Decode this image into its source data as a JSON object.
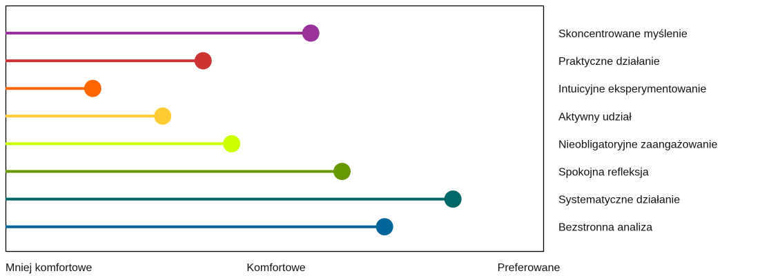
{
  "chart_data": {
    "type": "lollipop",
    "orientation": "horizontal",
    "title": "",
    "xlabel": "",
    "ylabel": "",
    "x_ticks": [
      "Mniej komfortowe",
      "Komfortowe",
      "Preferowane"
    ],
    "xlim": [
      0,
      100
    ],
    "grid": false,
    "items": [
      {
        "label": "Skoncentrowane myślenie",
        "value": 56.7,
        "color": "#993399"
      },
      {
        "label": "Praktyczne działanie",
        "value": 36.7,
        "color": "#cc3333"
      },
      {
        "label": "Intuicyjne eksperymentowanie",
        "value": 16.2,
        "color": "#ff6600"
      },
      {
        "label": "Aktywny udział",
        "value": 29.2,
        "color": "#ffcc33"
      },
      {
        "label": "Nieobligatoryjne zaangażowanie",
        "value": 42.0,
        "color": "#ccff00"
      },
      {
        "label": "Spokojna refleksja",
        "value": 62.5,
        "color": "#669900"
      },
      {
        "label": "Systematyczne działanie",
        "value": 83.1,
        "color": "#006666"
      },
      {
        "label": "Bezstronna analiza",
        "value": 70.4,
        "color": "#006699"
      }
    ]
  }
}
